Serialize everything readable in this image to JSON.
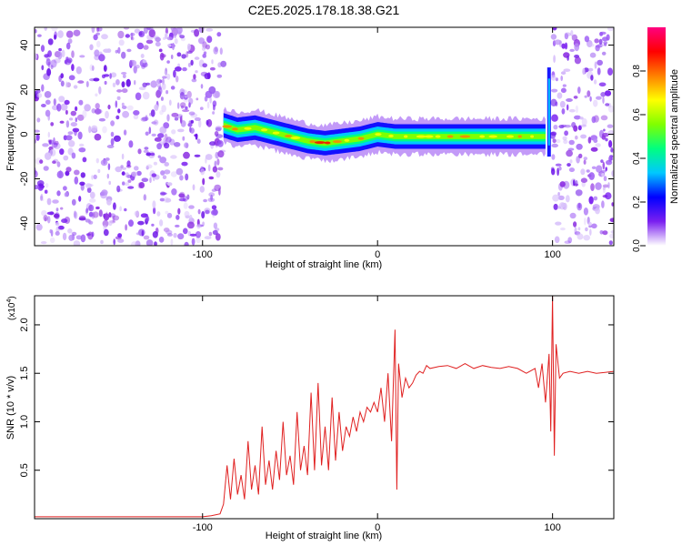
{
  "title": "C2E5.2025.178.18.38.G21",
  "chart_data": [
    {
      "type": "heatmap",
      "xlabel": "Height of straight line (km)",
      "ylabel": "Frequency (Hz)",
      "xlim": [
        -196,
        135
      ],
      "ylim": [
        -50,
        48
      ],
      "x_ticks": [
        -100,
        0,
        100
      ],
      "x_tick_labels": [
        "-100",
        "0",
        "100"
      ],
      "y_ticks": [
        -40,
        -20,
        0,
        20,
        40
      ],
      "y_tick_labels": [
        "-40",
        "-20",
        "0",
        "20",
        "40"
      ],
      "noise_regions": [
        [
          -196,
          -88
        ],
        [
          100,
          135
        ]
      ],
      "ridge": {
        "x": [
          -88,
          -80,
          -70,
          -60,
          -50,
          -40,
          -30,
          -20,
          -10,
          0,
          10,
          20,
          40,
          60,
          80,
          96
        ],
        "y": [
          4,
          2,
          3,
          1,
          -1,
          -3,
          -4,
          -3,
          -2,
          0,
          -1,
          -1,
          -1,
          -1,
          -1,
          -1
        ]
      },
      "colorbar": {
        "label": "Normalized spectral amplitude",
        "ticks": [
          0.0,
          0.2,
          0.4,
          0.6,
          0.8
        ],
        "tick_labels": [
          "0.0",
          "0.2",
          "0.4",
          "0.6",
          "0.8"
        ],
        "stops": [
          "#ffffff",
          "#7a1ff0",
          "#0000ff",
          "#00c8ff",
          "#00ff80",
          "#80ff00",
          "#ffff00",
          "#ff8000",
          "#ff0000",
          "#ff0080"
        ]
      },
      "grid": false
    },
    {
      "type": "line",
      "xlabel": "Height of straight line (km)",
      "ylabel": "SNR (10 * v/v)",
      "y_scale_note": "(x10",
      "y_scale_exp": "4",
      "y_scale_close": ")",
      "xlim": [
        -196,
        135
      ],
      "ylim": [
        0,
        2.3
      ],
      "x_ticks": [
        -100,
        0,
        100
      ],
      "x_tick_labels": [
        "-100",
        "0",
        "100"
      ],
      "y_ticks": [
        0.5,
        1.0,
        1.5,
        2.0
      ],
      "y_tick_labels": [
        "0.5",
        "1.0",
        "1.5",
        "2.0"
      ],
      "series": [
        {
          "color": "#e02020",
          "x": [
            -196,
            -100,
            -95,
            -90,
            -88,
            -86,
            -84,
            -82,
            -80,
            -78,
            -76,
            -74,
            -72,
            -70,
            -68,
            -66,
            -64,
            -62,
            -60,
            -58,
            -56,
            -54,
            -52,
            -50,
            -48,
            -46,
            -44,
            -42,
            -40,
            -38,
            -36,
            -34,
            -32,
            -30,
            -28,
            -26,
            -24,
            -22,
            -20,
            -18,
            -16,
            -14,
            -12,
            -10,
            -8,
            -6,
            -4,
            -2,
            0,
            2,
            4,
            6,
            8,
            10,
            11,
            12,
            14,
            16,
            18,
            20,
            22,
            24,
            26,
            28,
            30,
            35,
            40,
            45,
            50,
            55,
            60,
            65,
            70,
            75,
            80,
            85,
            90,
            92,
            94,
            96,
            98,
            99,
            100,
            101,
            102,
            104,
            106,
            110,
            115,
            120,
            125,
            130,
            135
          ],
          "y": [
            0.02,
            0.02,
            0.03,
            0.05,
            0.15,
            0.55,
            0.2,
            0.62,
            0.25,
            0.45,
            0.2,
            0.8,
            0.3,
            0.55,
            0.25,
            0.95,
            0.35,
            0.6,
            0.3,
            0.7,
            0.4,
            1.0,
            0.45,
            0.65,
            0.35,
            1.1,
            0.5,
            0.75,
            0.45,
            1.3,
            0.5,
            1.4,
            0.55,
            0.95,
            0.5,
            1.25,
            0.6,
            1.1,
            0.7,
            0.95,
            0.85,
            1.05,
            0.9,
            1.1,
            1.0,
            1.15,
            1.1,
            1.2,
            1.1,
            1.35,
            1.0,
            1.5,
            0.8,
            1.95,
            0.3,
            1.6,
            1.25,
            1.45,
            1.35,
            1.4,
            1.48,
            1.52,
            1.5,
            1.58,
            1.55,
            1.57,
            1.58,
            1.55,
            1.6,
            1.55,
            1.58,
            1.56,
            1.55,
            1.57,
            1.55,
            1.5,
            1.55,
            1.35,
            1.6,
            1.2,
            1.7,
            0.9,
            2.3,
            0.65,
            1.8,
            1.45,
            1.5,
            1.52,
            1.5,
            1.52,
            1.5,
            1.51,
            1.52
          ]
        }
      ],
      "grid": false
    }
  ]
}
